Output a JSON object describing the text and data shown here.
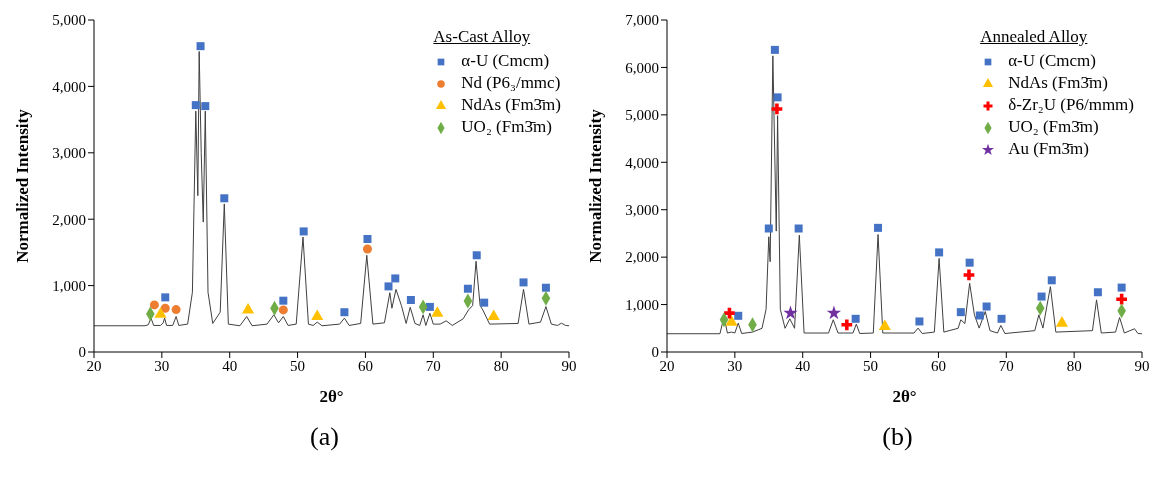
{
  "chart_data": [
    {
      "type": "scatter",
      "xlabel": "2θ°",
      "ylabel": "Normalized Intensity",
      "legend_title": "As-Cast Alloy",
      "legend": "top right",
      "annotations": [
        "(a)"
      ],
      "xlim": [
        20,
        90
      ],
      "xticks": [
        20,
        30,
        40,
        50,
        60,
        70,
        80,
        90
      ],
      "ylim": [
        0,
        5000
      ],
      "yticks": [
        0,
        {
          "value": 1000,
          "label": "1,000"
        },
        {
          "value": 2000,
          "label": "2,000"
        },
        {
          "value": 3000,
          "label": "3,000"
        },
        {
          "value": 4000,
          "label": "4,000"
        },
        {
          "value": 5000,
          "label": "5,000"
        }
      ],
      "grid": false,
      "series": [
        {
          "type": "line",
          "color": "#404040",
          "x": [
            20,
            27.5,
            28.0,
            28.4,
            28.8,
            29.8,
            30.2,
            30.4,
            30.7,
            31.6,
            32.1,
            32.5,
            33.8,
            34.5,
            35.0,
            35.3,
            35.5,
            35.8,
            36.1,
            36.4,
            36.8,
            37.5,
            38.6,
            39.2,
            39.8,
            41.5,
            42.5,
            43.3,
            45.5,
            46.5,
            47.2,
            47.9,
            48.6,
            49.8,
            50.8,
            51.6,
            52.3,
            52.9,
            53.6,
            56.2,
            56.9,
            57.6,
            59.3,
            60.2,
            61.1,
            62.8,
            63.6,
            63.9,
            64.5,
            65.3,
            66.0,
            66.6,
            67.3,
            68.0,
            68.5,
            68.9,
            69.5,
            70.0,
            71.0,
            71.9,
            72.8,
            74.4,
            75.2,
            75.8,
            76.3,
            76.9,
            77.3,
            78.3,
            82.5,
            83.3,
            84.1,
            85.8,
            86.6,
            87.4,
            88.3,
            88.9,
            89.5,
            90
          ],
          "values": [
            395,
            395,
            410,
            510,
            400,
            400,
            440,
            510,
            400,
            400,
            534,
            400,
            420,
            900,
            3628,
            2355,
            4526,
            3000,
            1956,
            3628,
            900,
            430,
            600,
            2230,
            420,
            395,
            534,
            395,
            420,
            560,
            440,
            534,
            400,
            420,
            1731,
            420,
            400,
            450,
            395,
            420,
            510,
            400,
            430,
            1457,
            420,
            440,
            893,
            659,
            943,
            700,
            430,
            674,
            430,
            400,
            560,
            400,
            584,
            420,
            420,
            469,
            400,
            500,
            634,
            700,
            1367,
            700,
            634,
            420,
            430,
            943,
            420,
            450,
            684,
            420,
            400,
            434,
            400,
            395
          ]
        },
        {
          "name": "α-U (Cmcm)",
          "color": "#4472c4",
          "marker": "square",
          "x": [
            30.5,
            35.0,
            35.7,
            36.4,
            39.2,
            47.9,
            50.9,
            56.9,
            60.3,
            63.4,
            64.4,
            66.7,
            69.5,
            75.1,
            76.4,
            77.5,
            83.3,
            86.6
          ],
          "values": [
            823,
            3718,
            4606,
            3703,
            2315,
            773,
            1816,
            599,
            1702,
            988,
            1108,
            783,
            679,
            953,
            1457,
            743,
            1048,
            968
          ]
        },
        {
          "name": "Nd (P6₃/mmc)",
          "color": "#ed7d31",
          "marker": "circle",
          "x": [
            28.9,
            30.5,
            32.1,
            47.9,
            60.3
          ],
          "values": [
            709,
            659,
            639,
            634,
            1552
          ]
        },
        {
          "name": "NdAs (Fm3̄m)",
          "color": "#ffc000",
          "marker": "triangle",
          "x": [
            29.8,
            42.7,
            52.9,
            70.6,
            78.9
          ],
          "values": [
            569,
            634,
            534,
            584,
            534
          ]
        },
        {
          "name": "UO₂ (Fm3̄m)",
          "color": "#70ad47",
          "marker": "diamond",
          "x": [
            28.3,
            46.6,
            68.5,
            75.1,
            86.6
          ],
          "values": [
            574,
            659,
            679,
            768,
            808
          ]
        }
      ]
    },
    {
      "type": "scatter",
      "xlabel": "2θ°",
      "ylabel": "Normalized Intensity",
      "legend_title": "Annealed Alloy",
      "legend": "top right",
      "annotations": [
        "(b)"
      ],
      "xlim": [
        20,
        90
      ],
      "xticks": [
        20,
        30,
        40,
        50,
        60,
        70,
        80,
        90
      ],
      "ylim": [
        0,
        7000
      ],
      "yticks": [
        0,
        {
          "value": 1000,
          "label": "1,000"
        },
        {
          "value": 2000,
          "label": "2,000"
        },
        {
          "value": 3000,
          "label": "3,000"
        },
        {
          "value": 4000,
          "label": "4,000"
        },
        {
          "value": 5000,
          "label": "5,000"
        },
        {
          "value": 6000,
          "label": "6,000"
        },
        {
          "value": 7000,
          "label": "7,000"
        }
      ],
      "grid": false,
      "series": [
        {
          "type": "line",
          "color": "#404040",
          "x": [
            20,
            27.8,
            28.4,
            28.9,
            29.5,
            30.0,
            30.5,
            31.0,
            32.6,
            34.0,
            34.6,
            35.0,
            35.2,
            35.6,
            36.1,
            36.3,
            36.7,
            37.4,
            38.1,
            38.8,
            39.5,
            40.2,
            43.8,
            44.5,
            45.2,
            47.4,
            47.9,
            48.4,
            50.4,
            51.1,
            51.8,
            56.4,
            57.0,
            57.6,
            59.4,
            60.1,
            60.8,
            62.9,
            63.3,
            63.9,
            64.6,
            65.3,
            66.0,
            66.9,
            67.6,
            68.7,
            69.2,
            69.8,
            74.2,
            74.8,
            75.4,
            76.5,
            77.3,
            82.7,
            83.3,
            84.0,
            86.1,
            86.7,
            87.4,
            88.9,
            89.4,
            90
          ],
          "values": [
            385,
            385,
            749,
            400,
            420,
            400,
            609,
            390,
            420,
            500,
            900,
            2429,
            1904,
            6244,
            2549,
            4984,
            900,
            500,
            700,
            500,
            2464,
            400,
            400,
            679,
            400,
            400,
            588,
            390,
            400,
            2478,
            400,
            400,
            504,
            390,
            420,
            1974,
            420,
            500,
            679,
            600,
            1449,
            784,
            504,
            854,
            450,
            400,
            560,
            390,
            450,
            784,
            504,
            1379,
            420,
            450,
            1099,
            400,
            420,
            728,
            400,
            490,
            390,
            385
          ]
        },
        {
          "name": "α-U (Cmcm)",
          "color": "#4472c4",
          "marker": "square",
          "x": [
            30.5,
            35.0,
            35.9,
            36.3,
            39.4,
            47.8,
            51.1,
            57.2,
            60.1,
            63.3,
            64.6,
            66.1,
            67.1,
            69.3,
            75.2,
            76.7,
            83.5,
            87.0
          ],
          "values": [
            763,
            2604,
            6370,
            5369,
            2604,
            700,
            2618,
            644,
            2100,
            840,
            1883,
            770,
            959,
            700,
            1169,
            1512,
            1260,
            1358
          ]
        },
        {
          "name": "NdAs (Fm3̄m)",
          "color": "#ffc000",
          "marker": "triangle",
          "x": [
            29.5,
            52.1,
            78.2
          ],
          "values": [
            630,
            539,
            609
          ]
        },
        {
          "name": "δ-Zr₂U (P6/mmm)",
          "color": "#ff0000",
          "marker": "cross",
          "x": [
            29.2,
            36.2,
            46.5,
            64.5,
            87.0
          ],
          "values": [
            819,
            5124,
            574,
            1624,
            1113
          ]
        },
        {
          "name": "UO₂ (Fm3̄m)",
          "color": "#70ad47",
          "marker": "diamond",
          "x": [
            28.4,
            32.6,
            75.0,
            87.0
          ],
          "values": [
            679,
            574,
            924,
            868
          ]
        },
        {
          "name": "Au (Fm3̄m)",
          "color": "#7030a0",
          "marker": "star",
          "x": [
            38.2,
            44.6
          ],
          "values": [
            819,
            819
          ]
        }
      ]
    }
  ]
}
